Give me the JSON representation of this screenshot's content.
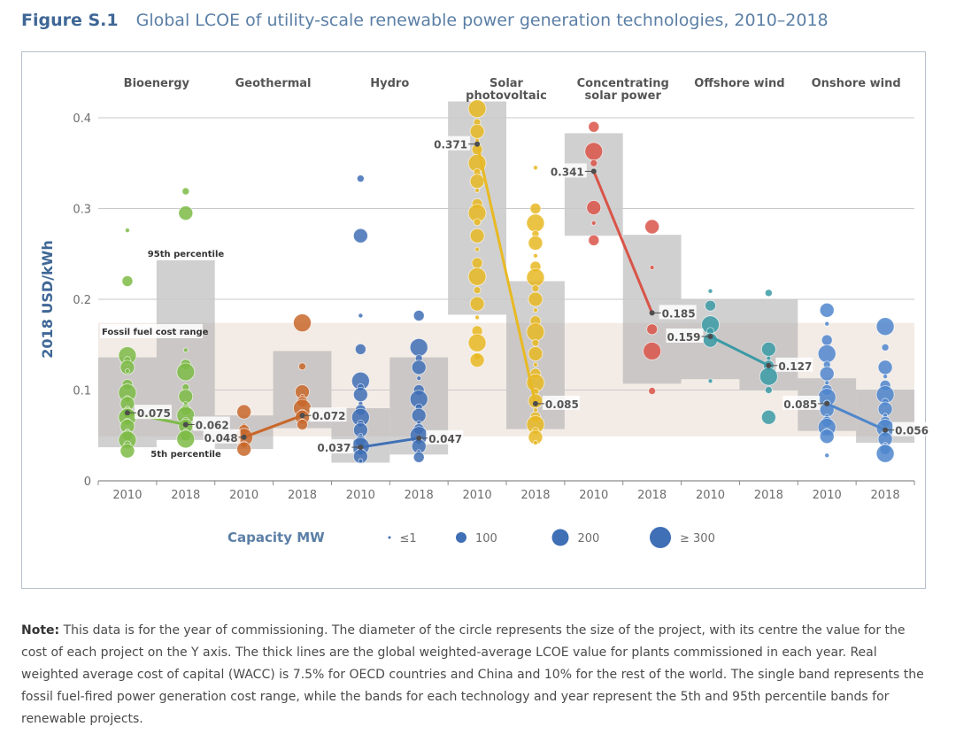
{
  "figure": {
    "number": "Figure S.1",
    "title": "Global LCOE of utility-scale renewable power generation technologies, 2010–2018"
  },
  "note": {
    "label": "Note:",
    "text": "This data is for the year of commissioning. The diameter of the circle represents the size of the project, with its centre the value for the cost of each project on the Y axis. The thick lines are the global weighted-average LCOE value for plants commissioned in each year. Real weighted average cost of capital (WACC) is 7.5% for OECD countries and China and 10% for the rest of the world. The single band represents the fossil fuel-fired power generation cost range, while the bands for each technology and year represent the 5th and 95th percentile bands for renewable projects."
  },
  "chart_data": {
    "type": "scatter",
    "title": "Global LCOE of utility-scale renewable power generation technologies, 2010–2018",
    "ylabel": "2018 USD/kWh",
    "xlabel": "",
    "ylim": [
      0,
      0.4
    ],
    "yticks": [
      "0",
      "0.1",
      "0.2",
      "0.3",
      "0.4"
    ],
    "grid": true,
    "years": [
      "2010",
      "2018"
    ],
    "fossil_fuel_range": {
      "label": "Fossil fuel cost range",
      "low": 0.049,
      "high": 0.174
    },
    "annotations": {
      "p95": "95th percentile",
      "p5": "5th percentile"
    },
    "legend": {
      "title": "Capacity MW",
      "placement": "bottom",
      "entries": [
        "≤1",
        "100",
        "200",
        "≥ 300"
      ]
    },
    "technologies": [
      {
        "name": "Bioenergy",
        "color": "#7dbb45",
        "weighted_avg": [
          0.075,
          0.062
        ],
        "labels": [
          "0.075",
          "0.062"
        ],
        "band_2010": [
          0.037,
          0.136
        ],
        "band_2018": [
          0.045,
          0.243
        ],
        "points_2010": [
          0.276,
          0.22,
          0.138,
          0.133,
          0.125,
          0.121,
          0.106,
          0.097,
          0.09,
          0.085,
          0.08,
          0.075,
          0.07,
          0.065,
          0.06,
          0.055,
          0.05,
          0.045,
          0.04,
          0.033
        ],
        "points_2018": [
          0.319,
          0.295,
          0.144,
          0.128,
          0.12,
          0.103,
          0.093,
          0.085,
          0.078,
          0.072,
          0.066,
          0.06,
          0.055,
          0.05,
          0.046
        ]
      },
      {
        "name": "Geothermal",
        "color": "#c8672a",
        "weighted_avg": [
          0.048,
          0.072
        ],
        "labels": [
          "0.048",
          "0.072"
        ],
        "band_2010": [
          0.035,
          0.072
        ],
        "band_2018": [
          0.058,
          0.143
        ],
        "points_2010": [
          0.076,
          0.061,
          0.056,
          0.048,
          0.04,
          0.035
        ],
        "points_2018": [
          0.174,
          0.126,
          0.098,
          0.093,
          0.087,
          0.08,
          0.075,
          0.07,
          0.066,
          0.062
        ]
      },
      {
        "name": "Hydro",
        "color": "#3f6fb5",
        "weighted_avg": [
          0.037,
          0.047
        ],
        "labels": [
          "0.037",
          "0.047"
        ],
        "band_2010": [
          0.02,
          0.08
        ],
        "band_2018": [
          0.029,
          0.136
        ],
        "points_2010": [
          0.333,
          0.27,
          0.182,
          0.145,
          0.11,
          0.103,
          0.095,
          0.085,
          0.078,
          0.07,
          0.063,
          0.056,
          0.05,
          0.044,
          0.038,
          0.032,
          0.027,
          0.022
        ],
        "points_2018": [
          0.182,
          0.147,
          0.135,
          0.125,
          0.113,
          0.1,
          0.09,
          0.081,
          0.072,
          0.064,
          0.057,
          0.05,
          0.044,
          0.038,
          0.032,
          0.026
        ]
      },
      {
        "name": "Solar photovoltaic",
        "color": "#e8b923",
        "weighted_avg": [
          0.371,
          0.085
        ],
        "labels": [
          "0.371",
          "0.085"
        ],
        "band_2010": [
          0.183,
          0.418
        ],
        "band_2018": [
          0.057,
          0.22
        ],
        "points_2010": [
          0.41,
          0.395,
          0.385,
          0.375,
          0.365,
          0.35,
          0.34,
          0.33,
          0.32,
          0.305,
          0.295,
          0.285,
          0.27,
          0.255,
          0.24,
          0.225,
          0.21,
          0.195,
          0.18,
          0.165,
          0.152,
          0.137,
          0.133
        ],
        "points_2018": [
          0.345,
          0.3,
          0.284,
          0.272,
          0.262,
          0.248,
          0.236,
          0.224,
          0.212,
          0.2,
          0.188,
          0.176,
          0.164,
          0.152,
          0.14,
          0.128,
          0.118,
          0.108,
          0.098,
          0.088,
          0.078,
          0.07,
          0.062,
          0.055,
          0.048,
          0.042
        ]
      },
      {
        "name": "Concentrating solar power",
        "color": "#d95448",
        "weighted_avg": [
          0.341,
          0.185
        ],
        "labels": [
          "0.341",
          "0.185"
        ],
        "band_2010": [
          0.27,
          0.383
        ],
        "band_2018": [
          0.107,
          0.271
        ],
        "points_2010": [
          0.39,
          0.363,
          0.35,
          0.301,
          0.284,
          0.265
        ],
        "points_2018": [
          0.28,
          0.235,
          0.167,
          0.143,
          0.099
        ]
      },
      {
        "name": "Offshore wind",
        "color": "#3a9aa5",
        "weighted_avg": [
          0.159,
          0.127
        ],
        "labels": [
          "0.159",
          "0.127"
        ],
        "band_2010": [
          0.112,
          0.2
        ],
        "band_2018": [
          0.1,
          0.2
        ],
        "points_2010": [
          0.209,
          0.193,
          0.172,
          0.165,
          0.155,
          0.11
        ],
        "points_2018": [
          0.207,
          0.145,
          0.135,
          0.127,
          0.115,
          0.1,
          0.07
        ]
      },
      {
        "name": "Onshore wind",
        "color": "#4f86cc",
        "weighted_avg": [
          0.085,
          0.056
        ],
        "labels": [
          "0.085",
          "0.056"
        ],
        "band_2010": [
          0.055,
          0.113
        ],
        "band_2018": [
          0.042,
          0.1
        ],
        "points_2010": [
          0.188,
          0.173,
          0.155,
          0.14,
          0.128,
          0.118,
          0.108,
          0.1,
          0.092,
          0.085,
          0.078,
          0.071,
          0.065,
          0.059,
          0.054,
          0.049,
          0.028
        ],
        "points_2018": [
          0.17,
          0.147,
          0.125,
          0.115,
          0.105,
          0.095,
          0.087,
          0.079,
          0.072,
          0.065,
          0.058,
          0.052,
          0.046,
          0.04,
          0.035,
          0.03
        ]
      }
    ]
  }
}
